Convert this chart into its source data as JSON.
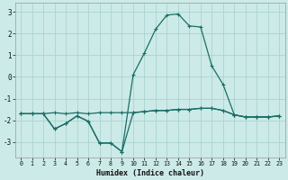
{
  "xlabel": "Humidex (Indice chaleur)",
  "background_color": "#cceae8",
  "grid_color": "#aad4d0",
  "line_color": "#1a6e65",
  "xlim": [
    -0.5,
    23.5
  ],
  "ylim": [
    -3.7,
    3.4
  ],
  "xticks": [
    0,
    1,
    2,
    3,
    4,
    5,
    6,
    7,
    8,
    9,
    10,
    11,
    12,
    13,
    14,
    15,
    16,
    17,
    18,
    19,
    20,
    21,
    22,
    23
  ],
  "yticks": [
    -3,
    -2,
    -1,
    0,
    1,
    2,
    3
  ],
  "series_main_x": [
    0,
    1,
    2,
    3,
    4,
    5,
    6,
    7,
    8,
    9,
    10,
    11,
    12,
    13,
    14,
    15,
    16,
    17,
    18,
    19,
    20,
    21,
    22,
    23
  ],
  "series_main_y": [
    -1.7,
    -1.7,
    -1.7,
    -1.65,
    -1.7,
    -1.65,
    -1.7,
    -1.65,
    -1.65,
    -1.65,
    -1.65,
    -1.6,
    -1.55,
    -1.55,
    -1.5,
    -1.5,
    -1.45,
    -1.45,
    -1.55,
    -1.75,
    -1.85,
    -1.85,
    -1.85,
    -1.8
  ],
  "series_bot_x": [
    0,
    1,
    2,
    3,
    4,
    5,
    6,
    7,
    8,
    9,
    10,
    11,
    12,
    13,
    14,
    15,
    16,
    17,
    18,
    19,
    20,
    21,
    22,
    23
  ],
  "series_bot_y": [
    -1.7,
    -1.7,
    -1.7,
    -2.4,
    -2.15,
    -1.8,
    -2.05,
    -3.05,
    -3.05,
    -3.45,
    -1.65,
    -1.6,
    -1.55,
    -1.55,
    -1.5,
    -1.5,
    -1.45,
    -1.45,
    -1.55,
    -1.75,
    -1.85,
    -1.85,
    -1.85,
    -1.8
  ],
  "series_peak_x": [
    0,
    1,
    2,
    3,
    4,
    5,
    6,
    7,
    8,
    9,
    10,
    11,
    12,
    13,
    14,
    15,
    16,
    17,
    18,
    19,
    20,
    21,
    22,
    23
  ],
  "series_peak_y": [
    -1.7,
    -1.7,
    -1.7,
    -2.4,
    -2.15,
    -1.8,
    -2.05,
    -3.05,
    -3.05,
    -3.45,
    0.1,
    1.1,
    2.2,
    2.85,
    2.9,
    2.35,
    2.3,
    0.5,
    -0.35,
    -1.75,
    -1.85,
    -1.85,
    -1.85,
    -1.8
  ]
}
